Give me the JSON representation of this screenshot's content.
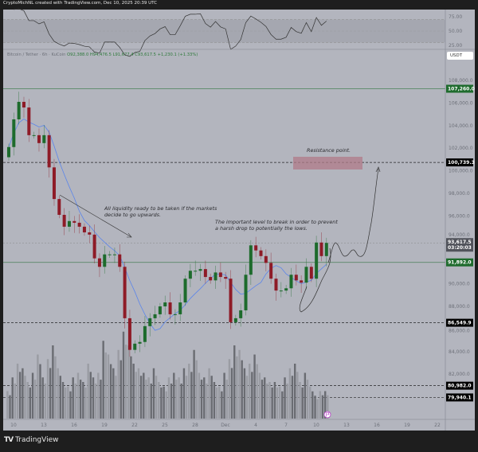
{
  "header": {
    "caption": "CryptoMichNL created with TradingView.com, Dec 10, 2025 20:39 UTC"
  },
  "legend": {
    "symbol": "Bitcoin / Tether · 6h · KuCoin",
    "open": "O92,388.0",
    "high": "H94,476.5",
    "low": "L91,677.4",
    "close": "C93,617.5",
    "change": "+1,230.1 (+1.33%)"
  },
  "currency": "USDT",
  "brand": "TradingView",
  "colors": {
    "up": "#1d6b2c",
    "down": "#8e1b27",
    "ma": "#5b85ea",
    "resistance_box": "#b07b88",
    "level_green": "#2f7a3c",
    "background": "#b3b5be"
  },
  "chart_data": {
    "type": "candlestick",
    "first_time": "2025-11-09 12:00",
    "interval": "12h",
    "closes": [
      102100,
      104550,
      106100,
      105600,
      103150,
      103150,
      102450,
      103150,
      100300,
      97500,
      96100,
      95050,
      95550,
      95400,
      95050,
      94550,
      94350,
      92250,
      91500,
      92600,
      92600,
      92600,
      91500,
      86950,
      84150,
      84700,
      84850,
      86250,
      86950,
      87300,
      88000,
      88350,
      87300,
      87300,
      88350,
      90450,
      91150,
      91150,
      91300,
      90600,
      90300,
      91000,
      90600,
      90450,
      86600,
      86950,
      87650,
      90800,
      93400,
      92950,
      92450,
      91850,
      90450,
      89400,
      89400,
      89600,
      90800,
      90300,
      90100,
      91500,
      90450,
      93650,
      92450,
      93617.5
    ],
    "volumes": [
      30,
      45,
      60,
      55,
      40,
      50,
      70,
      45,
      65,
      80,
      55,
      40,
      35,
      45,
      50,
      40,
      60,
      45,
      50,
      85,
      70,
      55,
      75,
      95,
      80,
      60,
      55,
      50,
      45,
      55,
      40,
      35,
      45,
      50,
      45,
      55,
      60,
      75,
      50,
      45,
      55,
      40,
      35,
      50,
      65,
      80,
      75,
      55,
      60,
      70,
      50,
      45,
      40,
      40,
      35,
      45,
      55,
      60,
      40,
      50,
      35,
      25,
      30,
      30
    ],
    "y_ticks": [
      "108,000.0",
      "106,000.0",
      "104,000.0",
      "102,000.0",
      "100,000.0",
      "98,000.0",
      "96,000.0",
      "94,000.0",
      "90,000.0",
      "88,000.0",
      "86,000.0",
      "84,000.0",
      "82,000.0"
    ],
    "y_tick_values": [
      108000,
      106000,
      104000,
      102000,
      100000,
      98000,
      96000,
      94000,
      90000,
      88000,
      86000,
      84000,
      82000
    ],
    "x_ticks": [
      "10",
      "13",
      "16",
      "19",
      "22",
      "25",
      "28",
      "Dec",
      "4",
      "7",
      "10",
      "13",
      "16",
      "19",
      "22"
    ],
    "rsi_ticks": [
      "75.00",
      "50.00",
      "25.00"
    ],
    "levels": [
      {
        "price": 107260,
        "label": "107,260.0",
        "style": "solid",
        "color": "#1e6b2d"
      },
      {
        "price": 100739.3,
        "label": "100,739.3",
        "style": "dashed",
        "color": "#000000"
      },
      {
        "price": 91892,
        "label": "91,892.0",
        "style": "solid",
        "color": "#1e6b2d"
      },
      {
        "price": 86549.9,
        "label": "86,549.9",
        "style": "dashed",
        "color": "#000000"
      },
      {
        "price": 80982,
        "label": "80,982.0",
        "style": "dashed",
        "color": "#000000"
      },
      {
        "price": 79940.1,
        "label": "79,940.1",
        "style": "dashed",
        "color": "#000000"
      }
    ],
    "last_price": {
      "label": "93,617.5",
      "countdown": "03:20:03",
      "price": 93617.5
    },
    "annotations": {
      "resistance": "Resistance point.",
      "liquidity_1": "All liquidity ready to be taken if the markets",
      "liquidity_2": "decide to go upwards.",
      "level_1": "The important level to break in order to prevent",
      "level_2": "a harsh drop to potentially the lows."
    }
  }
}
